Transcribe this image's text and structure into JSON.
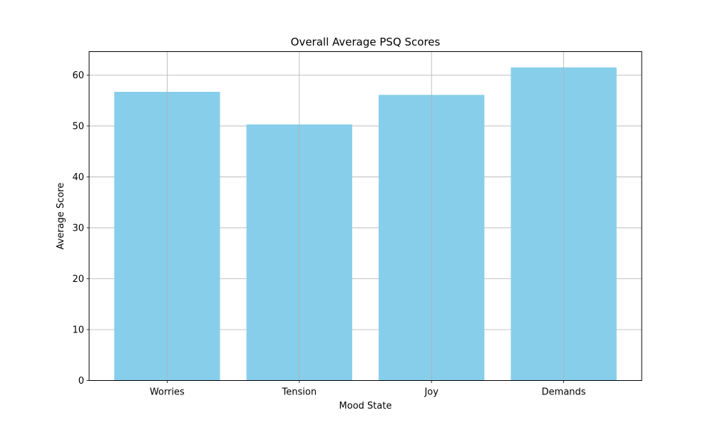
{
  "chart_data": {
    "type": "bar",
    "title": "Overall Average PSQ Scores",
    "xlabel": "Mood State",
    "ylabel": "Average Score",
    "categories": [
      "Worries",
      "Tension",
      "Joy",
      "Demands"
    ],
    "values": [
      56.7,
      50.3,
      56.1,
      61.5
    ],
    "ylim": [
      0,
      64.6
    ],
    "yticks": [
      0,
      10,
      20,
      30,
      40,
      50,
      60
    ],
    "grid": true,
    "bar_color": "#87ceeb",
    "grid_color": "#b0b0b0",
    "axis_color": "#000000"
  }
}
